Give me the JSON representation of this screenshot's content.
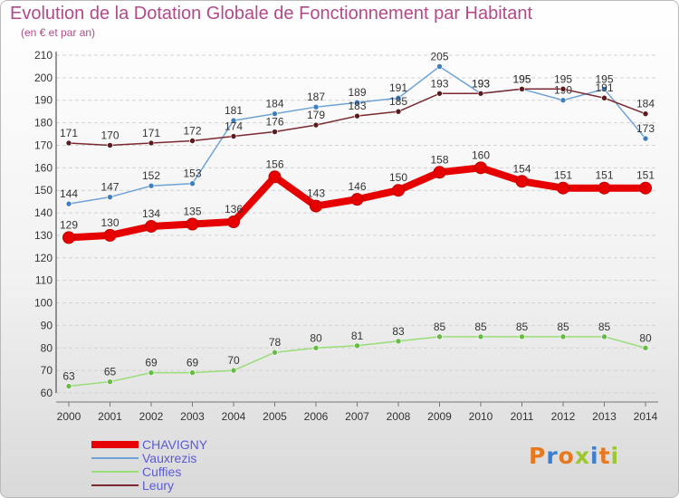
{
  "chart_data": {
    "type": "line",
    "title": "Evolution de la Dotation Globale de Fonctionnement par Habitant",
    "subtitle": "(en € et par an)",
    "x": [
      "2000",
      "2001",
      "2002",
      "2003",
      "2004",
      "2005",
      "2006",
      "2007",
      "2008",
      "2009",
      "2010",
      "2011",
      "2012",
      "2013",
      "2014"
    ],
    "ylim": [
      60,
      210
    ],
    "yticks": [
      60,
      70,
      80,
      90,
      100,
      110,
      120,
      130,
      140,
      150,
      160,
      170,
      180,
      190,
      200,
      210
    ],
    "grid": true,
    "legend_position": "bottom-left",
    "series": [
      {
        "name": "CHAVIGNY",
        "color": "#e60000",
        "values": [
          129,
          130,
          134,
          135,
          136,
          156,
          143,
          146,
          150,
          158,
          160,
          154,
          151,
          151,
          151
        ]
      },
      {
        "name": "Vauxrezis",
        "color": "#6fa3d6",
        "values": [
          144,
          147,
          152,
          153,
          181,
          184,
          187,
          189,
          191,
          205,
          193,
          195,
          190,
          195,
          173
        ]
      },
      {
        "name": "Cuffies",
        "color": "#99dd77",
        "values": [
          63,
          65,
          69,
          69,
          70,
          78,
          80,
          81,
          83,
          85,
          85,
          85,
          85,
          85,
          80
        ]
      },
      {
        "name": "Leury",
        "color": "#7a2a30",
        "values": [
          171,
          170,
          171,
          172,
          174,
          176,
          179,
          183,
          185,
          193,
          193,
          195,
          195,
          191,
          184
        ]
      }
    ]
  },
  "logo": {
    "text": "Proxiti",
    "colors": [
      "#e8781e",
      "#3c7fd1",
      "#e8781e",
      "#9dc72e",
      "#3c7fd1",
      "#e8781e",
      "#9dc72e"
    ]
  }
}
